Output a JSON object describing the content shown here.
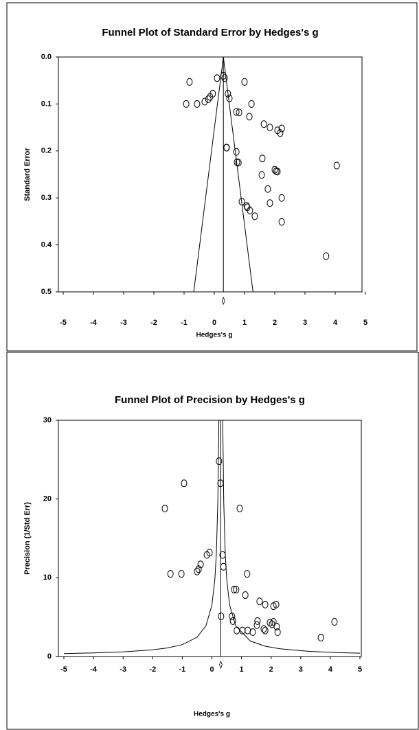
{
  "chart_data": [
    {
      "type": "scatter",
      "title": "Funnel Plot of Standard Error by Hedges's g",
      "x_label": "Hedges's g",
      "y_label": "Standard Error",
      "xlim": [
        -5,
        5
      ],
      "xticks": [
        -5,
        -4,
        -3,
        -2,
        -1,
        0,
        1,
        2,
        3,
        4,
        5
      ],
      "ylim": [
        0.5,
        0
      ],
      "yticks": [
        {
          "value": 0,
          "label": "0.0"
        },
        0.1,
        0.2,
        0.3,
        0.4,
        0.5
      ],
      "reference_x": 0.3,
      "series": [
        {
          "type": "scatter",
          "color": "#000000",
          "x": [
            -0.93,
            -0.82,
            -0.57,
            -0.32,
            -0.2,
            -0.14,
            -0.05,
            0.09,
            0.3,
            0.34,
            0.4,
            0.45,
            0.5,
            0.73,
            0.82,
            1.0,
            1.23,
            1.16,
            1.64,
            1.84,
            2.09,
            2.23,
            2.18,
            0.41,
            0.73,
            0.75,
            0.8,
            1.59,
            2.0,
            2.05,
            2.09,
            4.05,
            1.57,
            1.77,
            1.84,
            2.23,
            0.91,
            1.07,
            1.09,
            1.18,
            1.34,
            2.23,
            3.7
          ],
          "values": [
            0.1,
            0.053,
            0.1,
            0.095,
            0.09,
            0.085,
            0.078,
            0.045,
            0.04,
            0.045,
            0.193,
            0.078,
            0.088,
            0.117,
            0.118,
            0.053,
            0.1,
            0.127,
            0.143,
            0.15,
            0.156,
            0.152,
            0.162,
            0.193,
            0.202,
            0.224,
            0.225,
            0.216,
            0.24,
            0.243,
            0.244,
            0.231,
            0.251,
            0.281,
            0.311,
            0.3,
            0.308,
            0.317,
            0.32,
            0.327,
            0.339,
            0.351,
            0.424
          ]
        },
        {
          "type": "line",
          "color": "#000000",
          "x": [
            -0.68,
            0.3,
            1.28
          ],
          "values": [
            0.5,
            0,
            0.5
          ]
        }
      ]
    },
    {
      "type": "scatter",
      "title": "Funnel Plot of Precision by Hedges's g",
      "x_label": "Hedges's g",
      "y_label": "Precision (1/Std Err)",
      "xlim": [
        -5,
        5
      ],
      "xticks": [
        -5,
        -4,
        -3,
        -2,
        -1,
        0,
        1,
        2,
        3,
        4,
        5
      ],
      "ylim": [
        0,
        30
      ],
      "yticks": [
        0,
        10,
        20,
        30
      ],
      "reference_x": 0.3,
      "series": [
        {
          "type": "scatter",
          "color": "#000000",
          "x": [
            0.24,
            0.29,
            -0.94,
            -1.59,
            0.94,
            -1.03,
            -1.4,
            -0.5,
            -0.45,
            -0.38,
            -0.17,
            -0.08,
            0.36,
            0.39,
            1.19,
            0.75,
            0.82,
            1.13,
            1.61,
            1.8,
            2.08,
            2.17,
            0.31,
            0.68,
            0.71,
            1.54,
            1.52,
            1.96,
            2.03,
            2.08,
            1.75,
            1.8,
            0.84,
            1.03,
            1.21,
            1.38,
            2.19,
            2.22,
            4.14,
            3.68
          ],
          "values": [
            24.8,
            22.0,
            22.0,
            18.8,
            18.8,
            10.5,
            10.5,
            10.8,
            11.1,
            11.7,
            12.9,
            13.2,
            12.9,
            11.4,
            10.5,
            8.5,
            8.5,
            7.8,
            7.0,
            6.6,
            6.4,
            6.6,
            5.1,
            5.1,
            4.5,
            4.5,
            4.0,
            4.3,
            4.1,
            4.4,
            3.5,
            3.3,
            3.3,
            3.3,
            3.3,
            3.1,
            3.8,
            3.1,
            4.4,
            2.4
          ]
        },
        {
          "type": "line",
          "color": "#000000",
          "x": [
            -5,
            -4,
            -3,
            -2,
            -1.5,
            -1,
            -0.5,
            -0.2,
            0,
            0.1,
            0.15,
            0.2,
            0.235
          ],
          "values": [
            0.37,
            0.46,
            0.59,
            0.85,
            1.09,
            1.51,
            2.45,
            3.92,
            6.53,
            9.8,
            13.1,
            19.6,
            30
          ]
        },
        {
          "type": "line",
          "color": "#000000",
          "x": [
            0.365,
            0.4,
            0.45,
            0.5,
            0.6,
            0.8,
            1.3,
            1.8,
            2.3,
            3.3,
            4.3,
            5
          ],
          "values": [
            30,
            19.6,
            13.1,
            9.8,
            6.53,
            3.92,
            1.96,
            1.31,
            0.98,
            0.65,
            0.49,
            0.42
          ]
        }
      ]
    }
  ]
}
